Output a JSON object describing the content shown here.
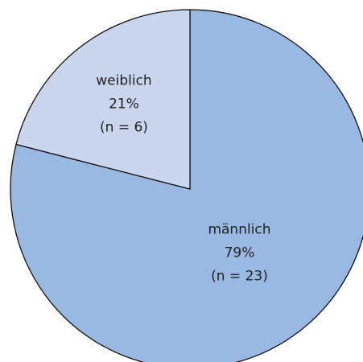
{
  "chart_data": {
    "type": "pie",
    "categories": [
      "männlich",
      "weiblich"
    ],
    "values": [
      79,
      21
    ],
    "value_labels": [
      "79%",
      "21%"
    ],
    "annotations": [
      "(n = 23)",
      "(n = 6)"
    ],
    "colors": [
      "#9ab9e2",
      "#c9d6ee"
    ]
  }
}
